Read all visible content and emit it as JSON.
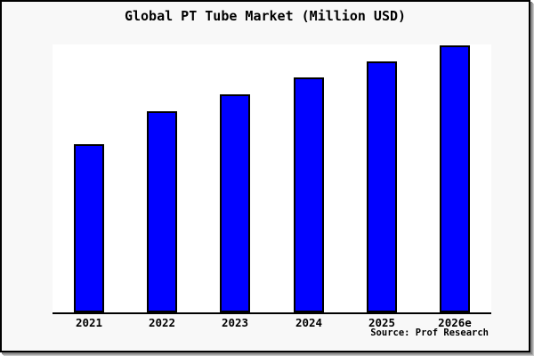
{
  "panel": {
    "title": "Global PT Tube Market (Million USD)",
    "source_credit": "Source: Prof Research"
  },
  "chart_data": {
    "type": "bar",
    "title": "Global PT Tube Market (Million USD)",
    "categories": [
      "2021",
      "2022",
      "2023",
      "2024",
      "2025",
      "2026e"
    ],
    "values": [
      63,
      75.3,
      81.7,
      88,
      94,
      100
    ],
    "xlabel": "",
    "ylabel": "",
    "ylim": [
      0,
      100.3
    ],
    "y_axis_visible": false,
    "grid": false,
    "legend": "none",
    "note": "No numeric y-axis shown in image; values are relative estimates with 2026e = 100",
    "bar_color": "#0000ff",
    "bar_border_color": "#000000"
  },
  "colors": {
    "panel_background": "#f8f8f8",
    "plot_background": "#ffffff",
    "bar_fill": "#0000ff",
    "axis": "#000000",
    "border": "#000000",
    "shadow": "#a8a8a8"
  }
}
